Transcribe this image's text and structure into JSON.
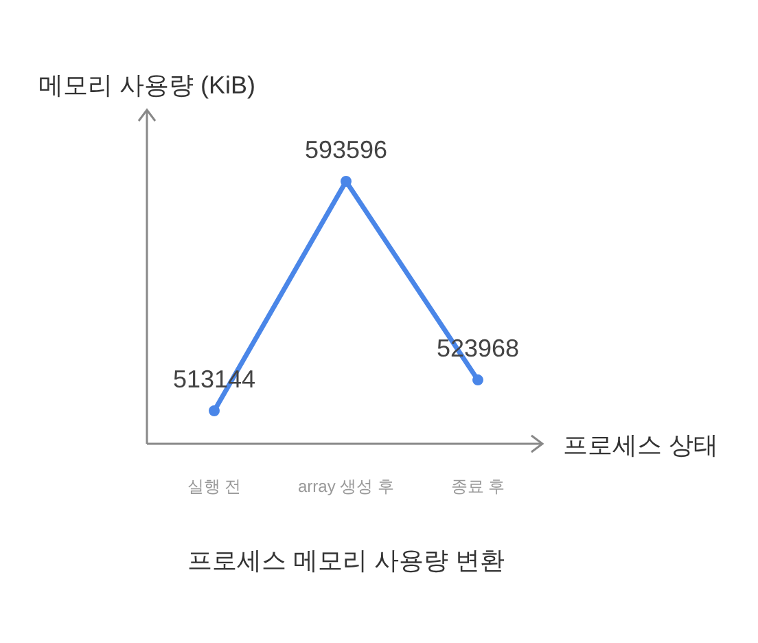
{
  "chart_data": {
    "type": "line",
    "title": "프로세스 메모리 사용량 변환",
    "xlabel": "프로세스 상태",
    "ylabel": "메모리 사용량 (KiB)",
    "categories": [
      "실행 전",
      "array 생성 후",
      "종료 후"
    ],
    "series": [
      {
        "color": "#4a86e8",
        "values": [
          513144,
          593596,
          523968
        ]
      }
    ],
    "data_labels": true,
    "marker": "circle"
  }
}
